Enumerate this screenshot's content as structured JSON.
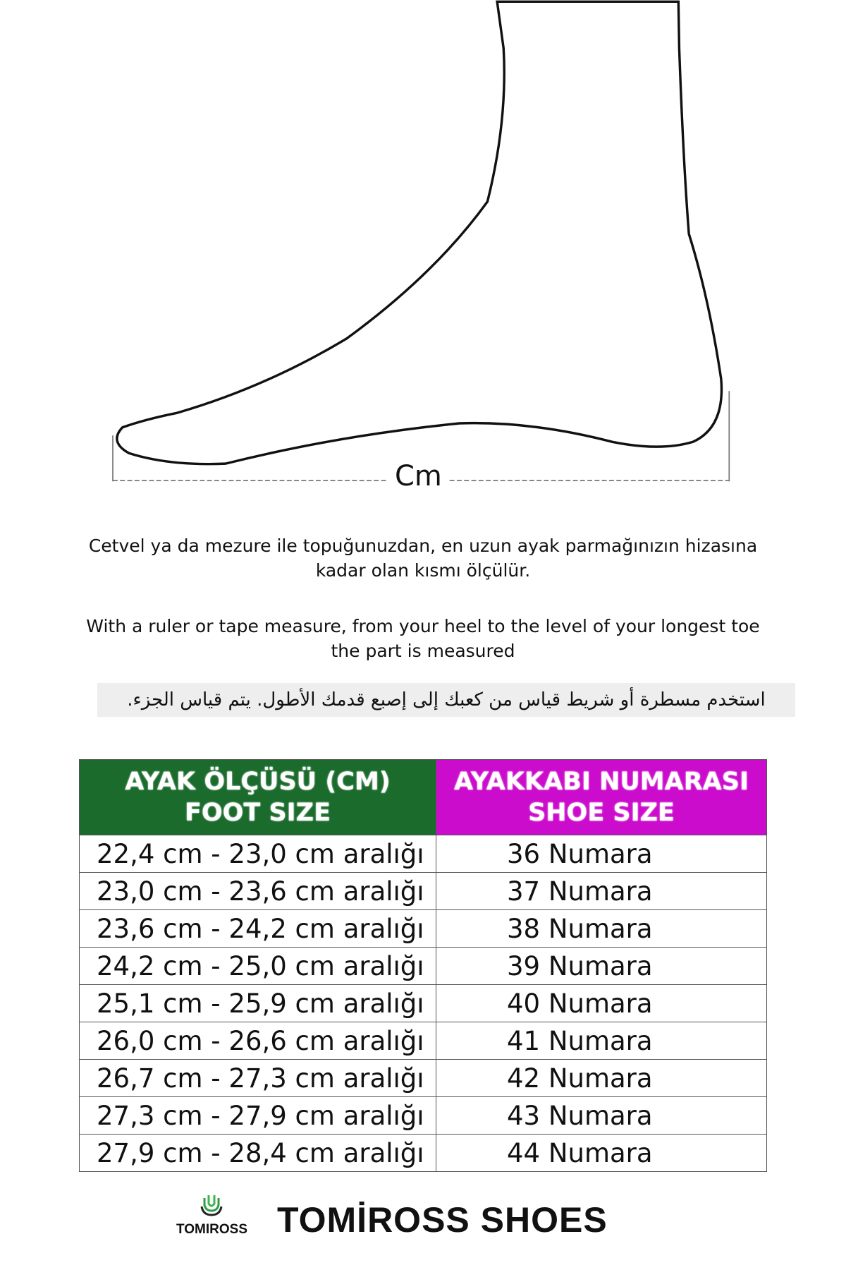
{
  "diagram": {
    "measure_label": "Cm"
  },
  "instructions": {
    "turkish": "Cetvel ya da mezure ile topuğunuzdan, en uzun ayak parmağınızın hizasına kadar olan kısmı ölçülür.",
    "english_line1": "With a ruler or tape measure, from your heel to the level of your longest toe",
    "english_line2": "the part is measured",
    "arabic": "استخدم مسطرة أو شريط قياس من كعبك إلى إصبع قدمك الأطول.  يتم قياس الجزء."
  },
  "table": {
    "header_foot_line1": "AYAK ÖLÇÜSÜ (CM)",
    "header_foot_line2": "FOOT SIZE",
    "header_shoe_line1": "AYAKKABI NUMARASI",
    "header_shoe_line2": "SHOE SIZE",
    "header_colors": {
      "foot": "#1a6b2c",
      "shoe": "#cc0ccc"
    },
    "rows": [
      {
        "foot": "22,4 cm - 23,0 cm aralığı",
        "shoe": "36 Numara"
      },
      {
        "foot": "23,0 cm - 23,6 cm aralığı",
        "shoe": "37 Numara"
      },
      {
        "foot": "23,6 cm - 24,2 cm aralığı",
        "shoe": "38 Numara"
      },
      {
        "foot": "24,2 cm - 25,0 cm aralığı",
        "shoe": "39 Numara"
      },
      {
        "foot": "25,1 cm - 25,9 cm aralığı",
        "shoe": "40 Numara"
      },
      {
        "foot": "26,0 cm - 26,6 cm aralığı",
        "shoe": "41 Numara"
      },
      {
        "foot": "26,7 cm - 27,3 cm aralığı",
        "shoe": "42 Numara"
      },
      {
        "foot": "27,3 cm - 27,9 cm aralığı",
        "shoe": "43 Numara"
      },
      {
        "foot": "27,9 cm - 28,4 cm aralığı",
        "shoe": "44 Numara"
      }
    ]
  },
  "footer": {
    "logo_text": "TOMIROSS",
    "brand_title": "TOMİROSS SHOES"
  }
}
